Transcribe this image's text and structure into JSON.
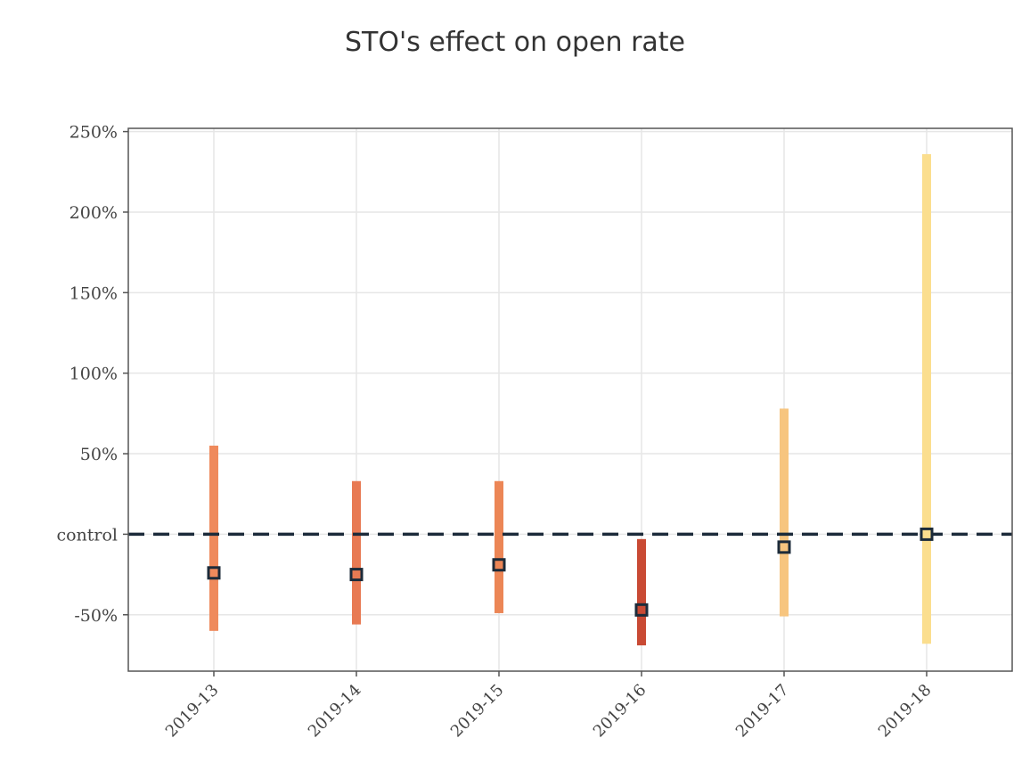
{
  "chart_data": {
    "type": "errorbar",
    "title": "STO's effect on open rate",
    "xlabel": "",
    "ylabel": "",
    "categories": [
      "2019-13",
      "2019-14",
      "2019-15",
      "2019-16",
      "2019-17",
      "2019-18"
    ],
    "values": [
      -24,
      -25,
      -19,
      -47,
      -8,
      0
    ],
    "lower": [
      -60,
      -56,
      -49,
      -69,
      -51,
      -68
    ],
    "upper": [
      55,
      33,
      33,
      -3,
      78,
      236
    ],
    "bar_colors": [
      "#ef8a5c",
      "#e87a53",
      "#ec8656",
      "#c94a34",
      "#f7c57f",
      "#fbde8e"
    ],
    "ylim": [
      -85,
      252
    ],
    "yticks": [
      {
        "value": 250,
        "label": "250%"
      },
      {
        "value": 200,
        "label": "200%"
      },
      {
        "value": 150,
        "label": "150%"
      },
      {
        "value": 100,
        "label": "100%"
      },
      {
        "value": 50,
        "label": "50%"
      },
      {
        "value": 0,
        "label": "control"
      },
      {
        "value": -50,
        "label": "-50%"
      }
    ],
    "reference_line": {
      "value": 0,
      "style": "dashed",
      "color": "#1c2b3a"
    },
    "grid": true,
    "marker_color": "#1c2b3a"
  }
}
